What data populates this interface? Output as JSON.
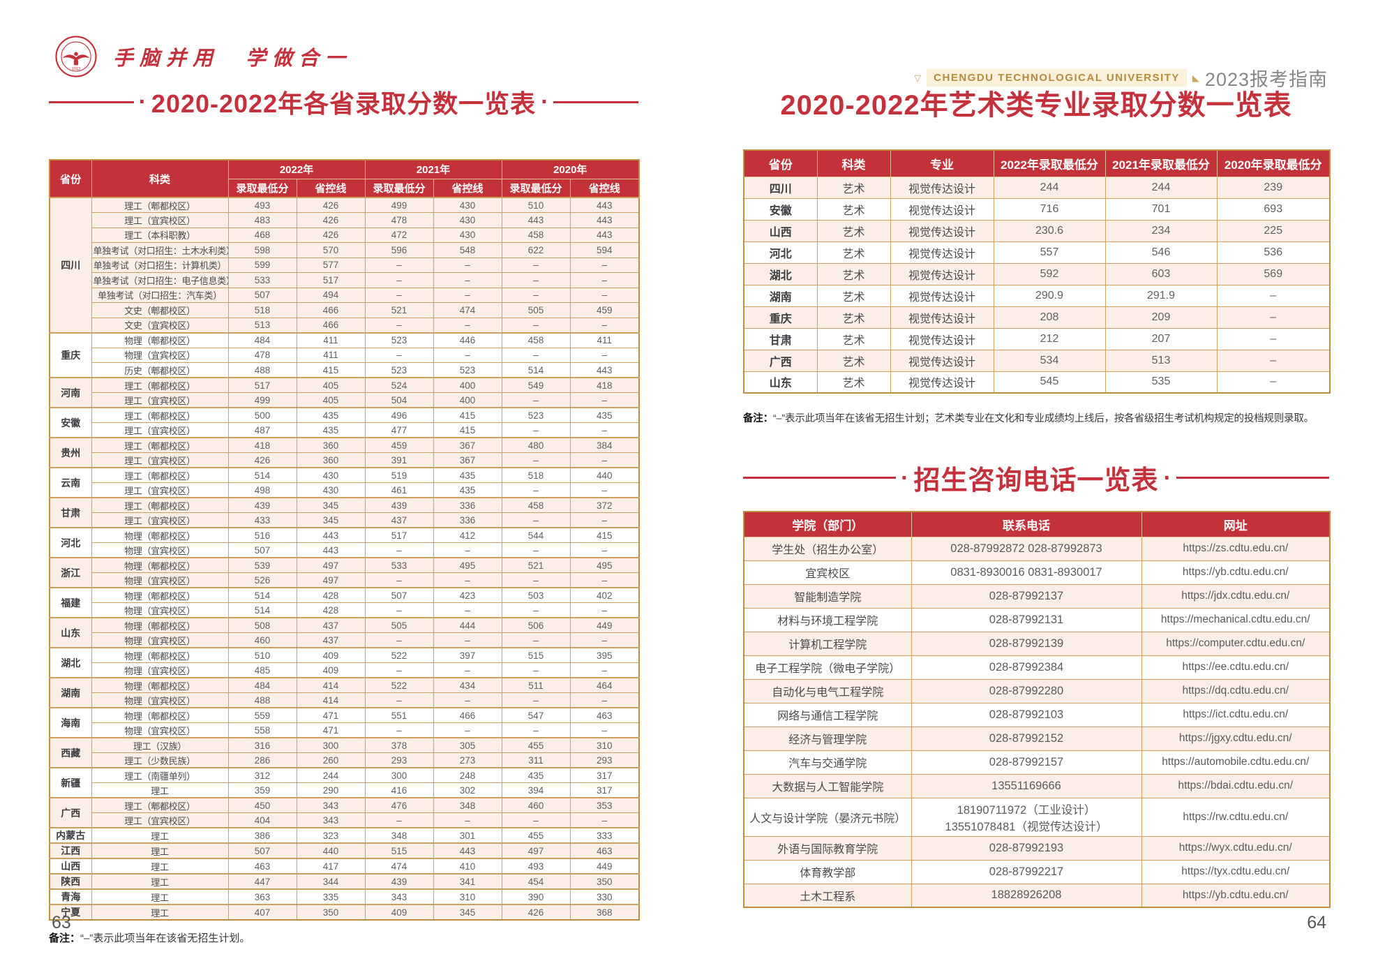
{
  "brand": {
    "slogan": "手脑并用　学做合一",
    "university_en": "CHENGDU TECHNOLOGICAL UNIVERSITY",
    "guide": "2023报考指南",
    "seal_year": "1913"
  },
  "colors": {
    "brand_red": "#c5313b",
    "gold_border": "#cf9f5d",
    "gold_text": "#b78b3e",
    "pink_row": "#fbeee6"
  },
  "left": {
    "title": "2020-2022年各省录取分数一览表",
    "page_no": "63",
    "note_label": "备注：",
    "note": "“–”表示此项当年在该省无招生计划。",
    "score_table": {
      "col_province": "省份",
      "col_category": "科类",
      "year_groups": [
        "2022年",
        "2021年",
        "2020年"
      ],
      "sub_headers": [
        "录取最低分",
        "省控线"
      ],
      "groups": [
        {
          "province": "四川",
          "rows": [
            {
              "category": "理工（郫都校区）",
              "values": [
                "493",
                "426",
                "499",
                "430",
                "510",
                "443"
              ]
            },
            {
              "category": "理工（宜宾校区）",
              "values": [
                "483",
                "426",
                "478",
                "430",
                "443",
                "443"
              ]
            },
            {
              "category": "理工（本科职教）",
              "values": [
                "468",
                "426",
                "472",
                "430",
                "458",
                "443"
              ]
            },
            {
              "category": "单独考试（对口招生：土木水利类）",
              "values": [
                "598",
                "570",
                "596",
                "548",
                "622",
                "594"
              ]
            },
            {
              "category": "单独考试（对口招生：计算机类）",
              "values": [
                "599",
                "577",
                "–",
                "–",
                "–",
                "–"
              ]
            },
            {
              "category": "单独考试（对口招生：电子信息类）",
              "values": [
                "533",
                "517",
                "–",
                "–",
                "–",
                "–"
              ]
            },
            {
              "category": "单独考试（对口招生：汽车类）",
              "values": [
                "507",
                "494",
                "–",
                "–",
                "–",
                "–"
              ]
            },
            {
              "category": "文史（郫都校区）",
              "values": [
                "518",
                "466",
                "521",
                "474",
                "505",
                "459"
              ]
            },
            {
              "category": "文史（宜宾校区）",
              "values": [
                "513",
                "466",
                "–",
                "–",
                "–",
                "–"
              ]
            }
          ]
        },
        {
          "province": "重庆",
          "rows": [
            {
              "category": "物理（郫都校区）",
              "values": [
                "484",
                "411",
                "523",
                "446",
                "458",
                "411"
              ]
            },
            {
              "category": "物理（宜宾校区）",
              "values": [
                "478",
                "411",
                "–",
                "–",
                "–",
                "–"
              ]
            },
            {
              "category": "历史（郫都校区）",
              "values": [
                "488",
                "415",
                "523",
                "523",
                "514",
                "443"
              ]
            }
          ]
        },
        {
          "province": "河南",
          "rows": [
            {
              "category": "理工（郫都校区）",
              "values": [
                "517",
                "405",
                "524",
                "400",
                "549",
                "418"
              ]
            },
            {
              "category": "理工（宜宾校区）",
              "values": [
                "499",
                "405",
                "504",
                "400",
                "–",
                "–"
              ]
            }
          ]
        },
        {
          "province": "安徽",
          "rows": [
            {
              "category": "理工（郫都校区）",
              "values": [
                "500",
                "435",
                "496",
                "415",
                "523",
                "435"
              ]
            },
            {
              "category": "理工（宜宾校区）",
              "values": [
                "487",
                "435",
                "477",
                "415",
                "–",
                "–"
              ]
            }
          ]
        },
        {
          "province": "贵州",
          "rows": [
            {
              "category": "理工（郫都校区）",
              "values": [
                "418",
                "360",
                "459",
                "367",
                "480",
                "384"
              ]
            },
            {
              "category": "理工（宜宾校区）",
              "values": [
                "426",
                "360",
                "391",
                "367",
                "–",
                "–"
              ]
            }
          ]
        },
        {
          "province": "云南",
          "rows": [
            {
              "category": "理工（郫都校区）",
              "values": [
                "514",
                "430",
                "519",
                "435",
                "518",
                "440"
              ]
            },
            {
              "category": "理工（宜宾校区）",
              "values": [
                "498",
                "430",
                "461",
                "435",
                "–",
                "–"
              ]
            }
          ]
        },
        {
          "province": "甘肃",
          "rows": [
            {
              "category": "理工（郫都校区）",
              "values": [
                "439",
                "345",
                "439",
                "336",
                "458",
                "372"
              ]
            },
            {
              "category": "理工（宜宾校区）",
              "values": [
                "433",
                "345",
                "437",
                "336",
                "–",
                "–"
              ]
            }
          ]
        },
        {
          "province": "河北",
          "rows": [
            {
              "category": "物理（郫都校区）",
              "values": [
                "516",
                "443",
                "517",
                "412",
                "544",
                "415"
              ]
            },
            {
              "category": "物理（宜宾校区）",
              "values": [
                "507",
                "443",
                "–",
                "–",
                "–",
                "–"
              ]
            }
          ]
        },
        {
          "province": "浙江",
          "rows": [
            {
              "category": "物理（郫都校区）",
              "values": [
                "539",
                "497",
                "533",
                "495",
                "521",
                "495"
              ]
            },
            {
              "category": "物理（宜宾校区）",
              "values": [
                "526",
                "497",
                "–",
                "–",
                "–",
                "–"
              ]
            }
          ]
        },
        {
          "province": "福建",
          "rows": [
            {
              "category": "物理（郫都校区）",
              "values": [
                "514",
                "428",
                "507",
                "423",
                "503",
                "402"
              ]
            },
            {
              "category": "物理（宜宾校区）",
              "values": [
                "514",
                "428",
                "–",
                "–",
                "–",
                "–"
              ]
            }
          ]
        },
        {
          "province": "山东",
          "rows": [
            {
              "category": "物理（郫都校区）",
              "values": [
                "508",
                "437",
                "505",
                "444",
                "506",
                "449"
              ]
            },
            {
              "category": "物理（宜宾校区）",
              "values": [
                "460",
                "437",
                "–",
                "–",
                "–",
                "–"
              ]
            }
          ]
        },
        {
          "province": "湖北",
          "rows": [
            {
              "category": "物理（郫都校区）",
              "values": [
                "510",
                "409",
                "522",
                "397",
                "515",
                "395"
              ]
            },
            {
              "category": "物理（宜宾校区）",
              "values": [
                "485",
                "409",
                "–",
                "–",
                "–",
                "–"
              ]
            }
          ]
        },
        {
          "province": "湖南",
          "rows": [
            {
              "category": "物理（郫都校区）",
              "values": [
                "484",
                "414",
                "522",
                "434",
                "511",
                "464"
              ]
            },
            {
              "category": "物理（宜宾校区）",
              "values": [
                "488",
                "414",
                "–",
                "–",
                "–",
                "–"
              ]
            }
          ]
        },
        {
          "province": "海南",
          "rows": [
            {
              "category": "物理（郫都校区）",
              "values": [
                "559",
                "471",
                "551",
                "466",
                "547",
                "463"
              ]
            },
            {
              "category": "物理（宜宾校区）",
              "values": [
                "558",
                "471",
                "–",
                "–",
                "–",
                "–"
              ]
            }
          ]
        },
        {
          "province": "西藏",
          "rows": [
            {
              "category": "理工（汉族）",
              "values": [
                "316",
                "300",
                "378",
                "305",
                "455",
                "310"
              ]
            },
            {
              "category": "理工（少数民族）",
              "values": [
                "286",
                "260",
                "293",
                "273",
                "311",
                "293"
              ]
            }
          ]
        },
        {
          "province": "新疆",
          "rows": [
            {
              "category": "理工（南疆单列）",
              "values": [
                "312",
                "244",
                "300",
                "248",
                "435",
                "317"
              ]
            },
            {
              "category": "理工",
              "values": [
                "359",
                "290",
                "416",
                "302",
                "394",
                "317"
              ]
            }
          ]
        },
        {
          "province": "广西",
          "rows": [
            {
              "category": "理工（郫都校区）",
              "values": [
                "450",
                "343",
                "476",
                "348",
                "460",
                "353"
              ]
            },
            {
              "category": "理工（宜宾校区）",
              "values": [
                "404",
                "343",
                "–",
                "–",
                "–",
                "–"
              ]
            }
          ]
        },
        {
          "province": "内蒙古",
          "rows": [
            {
              "category": "理工",
              "values": [
                "386",
                "323",
                "348",
                "301",
                "455",
                "333"
              ]
            }
          ]
        },
        {
          "province": "江西",
          "rows": [
            {
              "category": "理工",
              "values": [
                "507",
                "440",
                "515",
                "443",
                "497",
                "463"
              ]
            }
          ]
        },
        {
          "province": "山西",
          "rows": [
            {
              "category": "理工",
              "values": [
                "463",
                "417",
                "474",
                "410",
                "493",
                "449"
              ]
            }
          ]
        },
        {
          "province": "陕西",
          "rows": [
            {
              "category": "理工",
              "values": [
                "447",
                "344",
                "439",
                "341",
                "454",
                "350"
              ]
            }
          ]
        },
        {
          "province": "青海",
          "rows": [
            {
              "category": "理工",
              "values": [
                "363",
                "335",
                "343",
                "310",
                "390",
                "330"
              ]
            }
          ]
        },
        {
          "province": "宁夏",
          "rows": [
            {
              "category": "理工",
              "values": [
                "407",
                "350",
                "409",
                "345",
                "426",
                "368"
              ]
            }
          ]
        }
      ]
    }
  },
  "right": {
    "title": "2020-2022年艺术类专业录取分数一览表",
    "page_no": "64",
    "note_label": "备注：",
    "note": "“–”表示此项当年在该省无招生计划；艺术类专业在文化和专业成绩均上线后，按各省级招生考试机构规定的投档规则录取。",
    "art_table": {
      "headers": [
        "省份",
        "科类",
        "专业",
        "2022年录取最低分",
        "2021年录取最低分",
        "2020年录取最低分"
      ],
      "rows": [
        [
          "四川",
          "艺术",
          "视觉传达设计",
          "244",
          "244",
          "239"
        ],
        [
          "安徽",
          "艺术",
          "视觉传达设计",
          "716",
          "701",
          "693"
        ],
        [
          "山西",
          "艺术",
          "视觉传达设计",
          "230.6",
          "234",
          "225"
        ],
        [
          "河北",
          "艺术",
          "视觉传达设计",
          "557",
          "546",
          "536"
        ],
        [
          "湖北",
          "艺术",
          "视觉传达设计",
          "592",
          "603",
          "569"
        ],
        [
          "湖南",
          "艺术",
          "视觉传达设计",
          "290.9",
          "291.9",
          "–"
        ],
        [
          "重庆",
          "艺术",
          "视觉传达设计",
          "208",
          "209",
          "–"
        ],
        [
          "甘肃",
          "艺术",
          "视觉传达设计",
          "212",
          "207",
          "–"
        ],
        [
          "广西",
          "艺术",
          "视觉传达设计",
          "534",
          "513",
          "–"
        ],
        [
          "山东",
          "艺术",
          "视觉传达设计",
          "545",
          "535",
          "–"
        ]
      ]
    },
    "phone_title": "招生咨询电话一览表",
    "phone_table": {
      "headers": [
        "学院（部门）",
        "联系电话",
        "网址"
      ],
      "rows": [
        [
          "学生处（招生办公室）",
          "028-87992872  028-87992873",
          "https://zs.cdtu.edu.cn/"
        ],
        [
          "宜宾校区",
          "0831-8930016  0831-8930017",
          "https://yb.cdtu.edu.cn/"
        ],
        [
          "智能制造学院",
          "028-87992137",
          "https://jdx.cdtu.edu.cn/"
        ],
        [
          "材料与环境工程学院",
          "028-87992131",
          "https://mechanical.cdtu.edu.cn/"
        ],
        [
          "计算机工程学院",
          "028-87992139",
          "https://computer.cdtu.edu.cn/"
        ],
        [
          "电子工程学院（微电子学院）",
          "028-87992384",
          "https://ee.cdtu.edu.cn/"
        ],
        [
          "自动化与电气工程学院",
          "028-87992280",
          "https://dq.cdtu.edu.cn/"
        ],
        [
          "网络与通信工程学院",
          "028-87992103",
          "https://ict.cdtu.edu.cn/"
        ],
        [
          "经济与管理学院",
          "028-87992152",
          "https://jgxy.cdtu.edu.cn/"
        ],
        [
          "汽车与交通学院",
          "028-87992157",
          "https://automobile.cdtu.edu.cn/"
        ],
        [
          "大数据与人工智能学院",
          "13551169666",
          "https://bdai.cdtu.edu.cn/"
        ],
        [
          "人文与设计学院（晏济元书院）",
          "18190711972（工业设计）\n13551078481（视觉传达设计）",
          "https://rw.cdtu.edu.cn/"
        ],
        [
          "外语与国际教育学院",
          "028-87992193",
          "https://wyx.cdtu.edu.cn/"
        ],
        [
          "体育教学部",
          "028-87992217",
          "https://tyx.cdtu.edu.cn/"
        ],
        [
          "土木工程系",
          "18828926208",
          "https://yb.cdtu.edu.cn/"
        ]
      ]
    }
  }
}
